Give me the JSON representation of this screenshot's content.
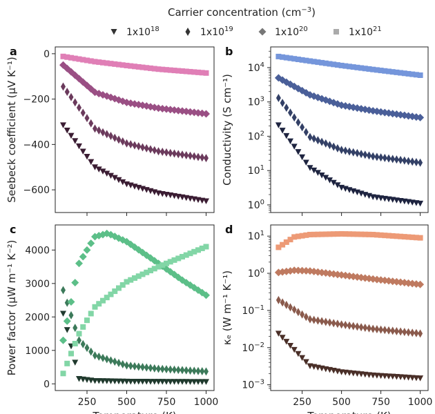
{
  "legend": {
    "title": "Carrier concentration (cm",
    "title_exp": "−3",
    "title_end": ")",
    "entries": [
      {
        "base": "1x10",
        "exp": "18",
        "marker": "triangle-down"
      },
      {
        "base": "1x10",
        "exp": "19",
        "marker": "thin-diamond"
      },
      {
        "base": "1x10",
        "exp": "20",
        "marker": "diamond"
      },
      {
        "base": "1x10",
        "exp": "21",
        "marker": "square"
      }
    ],
    "color": "#333333",
    "sq_color": "#aaaaaa"
  },
  "chart_data": [
    {
      "id": "a",
      "panel_label": "a",
      "type": "scatter",
      "ylabel": "Seebeck coefficient (μV K⁻¹)",
      "xlabel": "",
      "xlim": [
        50,
        1050
      ],
      "ylim": [
        -700,
        30
      ],
      "scale": "linear",
      "x_ticks": [
        250,
        500,
        750,
        1000
      ],
      "x_tick_labels": [],
      "y_ticks": [
        0,
        -200,
        -400,
        -600
      ],
      "y_tick_labels": [
        "0",
        "−200",
        "−400",
        "−600"
      ],
      "series": [
        {
          "marker": "triangle-down",
          "color": "#3b1d33",
          "x": [
            100,
            300,
            500,
            700,
            1000
          ],
          "values": [
            -315,
            -500,
            -575,
            -615,
            -650
          ]
        },
        {
          "marker": "thin-diamond",
          "color": "#6b3a5c",
          "x": [
            100,
            300,
            500,
            700,
            1000
          ],
          "values": [
            -145,
            -330,
            -395,
            -430,
            -460
          ]
        },
        {
          "marker": "diamond",
          "color": "#9a4f84",
          "x": [
            100,
            300,
            500,
            700,
            1000
          ],
          "values": [
            -50,
            -170,
            -215,
            -240,
            -265
          ]
        },
        {
          "marker": "square",
          "color": "#e07fb6",
          "x": [
            100,
            300,
            500,
            700,
            1000
          ],
          "values": [
            -12,
            -35,
            -52,
            -68,
            -85
          ]
        }
      ]
    },
    {
      "id": "b",
      "panel_label": "b",
      "type": "scatter",
      "ylabel": "Conductivity (S cm⁻¹)",
      "xlabel": "",
      "xlim": [
        50,
        1050
      ],
      "ylim": [
        0.6,
        40000
      ],
      "scale": "log",
      "x_ticks": [
        250,
        500,
        750,
        1000
      ],
      "x_tick_labels": [],
      "y_ticks": [
        1,
        10,
        100,
        1000,
        10000
      ],
      "y_tick_labels": [
        [
          "10",
          "0"
        ],
        [
          "10",
          "1"
        ],
        [
          "10",
          "2"
        ],
        [
          "10",
          "3"
        ],
        [
          "10",
          "4"
        ]
      ],
      "series": [
        {
          "marker": "triangle-down",
          "color": "#1e2440",
          "x": [
            100,
            300,
            500,
            700,
            1000
          ],
          "values": [
            210,
            12,
            3.2,
            1.7,
            1.1
          ]
        },
        {
          "marker": "thin-diamond",
          "color": "#334066",
          "x": [
            100,
            300,
            500,
            700,
            1000
          ],
          "values": [
            1300,
            95,
            40,
            26,
            17
          ]
        },
        {
          "marker": "diamond",
          "color": "#4a5f99",
          "x": [
            100,
            300,
            500,
            700,
            1000
          ],
          "values": [
            5000,
            1600,
            800,
            550,
            350
          ]
        },
        {
          "marker": "square",
          "color": "#7596db",
          "x": [
            100,
            300,
            500,
            700,
            1000
          ],
          "values": [
            21000,
            15500,
            11500,
            8800,
            6000
          ]
        }
      ]
    },
    {
      "id": "c",
      "panel_label": "c",
      "type": "scatter",
      "ylabel": "Power factor (μW m⁻¹ K⁻²)",
      "xlabel": "Temperature (K)",
      "xlim": [
        50,
        1050
      ],
      "ylim": [
        -200,
        4750
      ],
      "scale": "linear",
      "x_ticks": [
        250,
        500,
        750,
        1000
      ],
      "x_tick_labels": [
        "250",
        "500",
        "750",
        "1000"
      ],
      "y_ticks": [
        0,
        1000,
        2000,
        3000,
        4000
      ],
      "y_tick_labels": [
        "0",
        "1000",
        "2000",
        "3000",
        "4000"
      ],
      "series": [
        {
          "marker": "triangle-down",
          "color": "#203a2e",
          "x": [
            100,
            200,
            300,
            500,
            700,
            1000
          ],
          "values": [
            2100,
            150,
            90,
            70,
            65,
            60
          ]
        },
        {
          "marker": "thin-diamond",
          "color": "#3c7a5a",
          "x": [
            100,
            200,
            300,
            500,
            700,
            1000
          ],
          "values": [
            2800,
            1300,
            850,
            550,
            450,
            370
          ]
        },
        {
          "marker": "diamond",
          "color": "#5cbf88",
          "x": [
            100,
            200,
            300,
            380,
            500,
            700,
            850,
            1000
          ],
          "values": [
            1300,
            3600,
            4400,
            4500,
            4250,
            3600,
            3100,
            2650
          ]
        },
        {
          "marker": "square",
          "color": "#82d6a6",
          "x": [
            100,
            200,
            300,
            500,
            700,
            1000
          ],
          "values": [
            310,
            1500,
            2300,
            3050,
            3500,
            4100
          ]
        }
      ]
    },
    {
      "id": "d",
      "panel_label": "d",
      "type": "scatter",
      "ylabel": "κₑ (W m⁻¹ K⁻¹)",
      "xlabel": "Temperature (K)",
      "xlim": [
        50,
        1050
      ],
      "ylim": [
        0.0007,
        20
      ],
      "scale": "log",
      "x_ticks": [
        250,
        500,
        750,
        1000
      ],
      "x_tick_labels": [
        "250",
        "500",
        "750",
        "1000"
      ],
      "y_ticks": [
        0.001,
        0.01,
        0.1,
        1,
        10
      ],
      "y_tick_labels": [
        [
          "10",
          "−3"
        ],
        [
          "10",
          "−2"
        ],
        [
          "10",
          "−1"
        ],
        [
          "10",
          "0"
        ],
        [
          "10",
          "1"
        ]
      ],
      "series": [
        {
          "marker": "triangle-down",
          "color": "#4a2f28",
          "x": [
            100,
            300,
            500,
            700,
            1000
          ],
          "values": [
            0.024,
            0.0032,
            0.0022,
            0.0018,
            0.0015
          ]
        },
        {
          "marker": "thin-diamond",
          "color": "#8a5a4c",
          "x": [
            100,
            300,
            500,
            700,
            1000
          ],
          "values": [
            0.19,
            0.058,
            0.042,
            0.032,
            0.024
          ]
        },
        {
          "marker": "diamond",
          "color": "#bf7a60",
          "x": [
            100,
            200,
            300,
            500,
            700,
            1000
          ],
          "values": [
            1.05,
            1.2,
            1.15,
            0.9,
            0.7,
            0.5
          ]
        },
        {
          "marker": "square",
          "color": "#ed9a76",
          "x": [
            100,
            200,
            300,
            500,
            700,
            1000
          ],
          "values": [
            5.0,
            9.5,
            11.0,
            11.5,
            11.0,
            9.0
          ]
        }
      ]
    }
  ]
}
